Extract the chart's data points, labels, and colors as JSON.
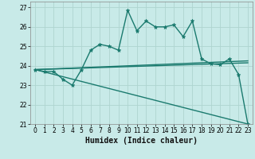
{
  "title": "",
  "xlabel": "Humidex (Indice chaleur)",
  "background_color": "#c8eae8",
  "grid_color": "#aed4d0",
  "line_color": "#1a7a6e",
  "xlim": [
    -0.5,
    23.5
  ],
  "ylim": [
    21.0,
    27.3
  ],
  "yticks": [
    21,
    22,
    23,
    24,
    25,
    26,
    27
  ],
  "xticks": [
    0,
    1,
    2,
    3,
    4,
    5,
    6,
    7,
    8,
    9,
    10,
    11,
    12,
    13,
    14,
    15,
    16,
    17,
    18,
    19,
    20,
    21,
    22,
    23
  ],
  "series1": [
    23.8,
    23.7,
    23.7,
    23.3,
    23.0,
    23.8,
    24.8,
    25.1,
    25.0,
    24.8,
    26.85,
    25.8,
    26.3,
    26.0,
    26.0,
    26.1,
    25.5,
    26.3,
    24.35,
    24.1,
    24.05,
    24.35,
    23.55,
    21.0
  ],
  "series2_x": [
    0,
    23
  ],
  "series2_y": [
    23.8,
    24.15
  ],
  "series3_x": [
    0,
    23
  ],
  "series3_y": [
    23.8,
    24.25
  ],
  "series4_x": [
    0,
    23
  ],
  "series4_y": [
    23.8,
    21.0
  ],
  "marker": "*",
  "markersize": 3.5,
  "linewidth": 1.0,
  "tick_fontsize": 5.5,
  "xlabel_fontsize": 7.0
}
